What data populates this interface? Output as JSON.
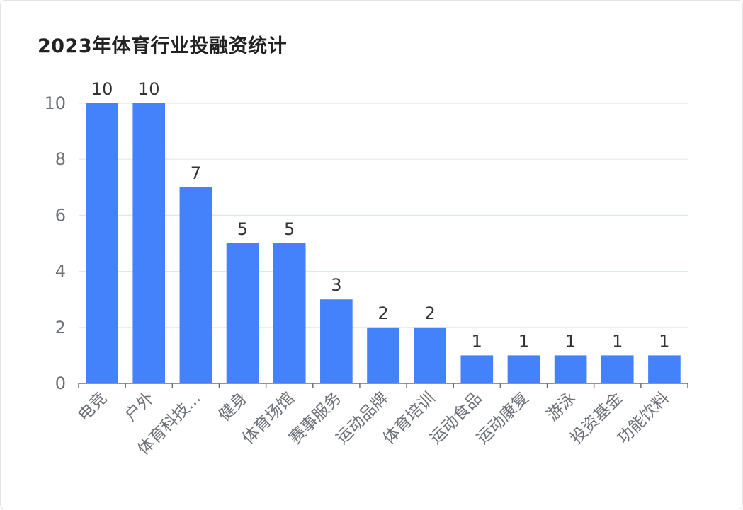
{
  "chart_data": {
    "type": "bar",
    "title": "2023年体育行业投融资统计",
    "categories": [
      "电竞",
      "户外",
      "体育科技...",
      "健身",
      "体育场馆",
      "赛事服务",
      "运动品牌",
      "体育培训",
      "运动食品",
      "运动康复",
      "游泳",
      "投资基金",
      "功能饮料"
    ],
    "values": [
      10,
      10,
      7,
      5,
      5,
      3,
      2,
      2,
      1,
      1,
      1,
      1,
      1
    ],
    "ylim": [
      0,
      10
    ],
    "yticks": [
      0,
      2,
      4,
      6,
      8,
      10
    ],
    "xlabel": "",
    "ylabel": "",
    "grid": true,
    "bar_color": "#4482fb",
    "show_data_labels": true
  }
}
